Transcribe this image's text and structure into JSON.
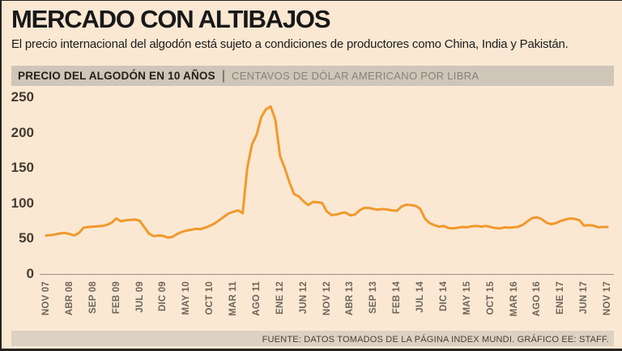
{
  "header": {
    "title": "MERCADO CON ALTIBAJOS",
    "subtitle": "El precio internacional del algodón está sujeto a condiciones de productores como China, India y Pakistán."
  },
  "panel": {
    "title": "PRECIO DEL ALGODÓN EN 10 AÑOS",
    "separator": "|",
    "units": "CENTAVOS DE DÓLAR AMERICANO POR LIBRA"
  },
  "footer": {
    "source": "FUENTE: DATOS TOMADOS DE LA PÁGINA INDEX MUNDI. GRÁFICO EE: STAFF."
  },
  "colors": {
    "background": "#FBE8D3",
    "band": "#CFC5B8",
    "footer_band": "#DDD1C3",
    "line": "#F0992C",
    "axis": "#9C938A",
    "x_label": "#6E655B",
    "y_label": "#453C31",
    "title": "#181818"
  },
  "chart_data": {
    "type": "line",
    "title": "PRECIO DEL ALGODÓN EN 10 AÑOS",
    "ylabel": "CENTAVOS DE DÓLAR AMERICANO POR LIBRA",
    "ylim": [
      0,
      250
    ],
    "yticks": [
      0,
      50,
      100,
      150,
      200,
      250
    ],
    "grid": false,
    "legend": "none",
    "points_frequency": "monthly",
    "ticks_every_n_points": 5,
    "x_tick_labels": [
      "NOV 07",
      "ABR 08",
      "SEP 08",
      "FEB 09",
      "JUL 09",
      "DIC 09",
      "MAY 10",
      "OCT 10",
      "MAR 11",
      "AGO 11",
      "ENE 12",
      "JUN 12",
      "NOV 12",
      "ABR 13",
      "SEP 13",
      "FEB 14",
      "JUL 14",
      "DIC 14",
      "MAY 15",
      "OCT 15",
      "MAR 16",
      "AGO 16",
      "ENE 17",
      "JUN 17",
      "NOV 17"
    ],
    "series": [
      {
        "name": "Precio del algodón (centavos de dólar por libra)",
        "values": [
          54.5,
          55,
          56,
          57.5,
          58,
          56.5,
          54.5,
          58,
          65.5,
          66.5,
          67,
          67.5,
          68,
          69.5,
          72.5,
          78.5,
          74.5,
          76,
          76.5,
          77,
          75.5,
          66,
          57,
          53.5,
          54.5,
          54,
          51.5,
          52.5,
          56.5,
          59.5,
          61.5,
          62.5,
          64,
          63.5,
          65.5,
          68,
          71.5,
          76,
          81,
          85.5,
          88,
          90,
          86,
          150,
          183,
          197,
          222,
          233,
          237,
          218,
          167,
          150,
          130,
          113,
          110,
          103,
          97.5,
          102,
          101.5,
          100.5,
          88.5,
          83.5,
          84,
          86,
          87,
          83,
          84,
          90,
          93.5,
          93.5,
          92,
          91,
          92,
          91,
          90,
          89.5,
          95.5,
          98,
          97.5,
          96.5,
          92,
          78,
          72,
          69,
          67,
          68,
          65,
          64.5,
          65.5,
          66.5,
          66,
          67.5,
          68,
          67,
          68,
          66.5,
          65,
          64.5,
          66,
          65.5,
          66,
          67,
          70,
          75,
          79.5,
          80,
          77.5,
          72.5,
          70.5,
          72,
          75,
          77,
          78.5,
          78,
          76,
          68.5,
          69,
          68.5,
          66,
          66.5,
          66.5
        ]
      }
    ]
  }
}
